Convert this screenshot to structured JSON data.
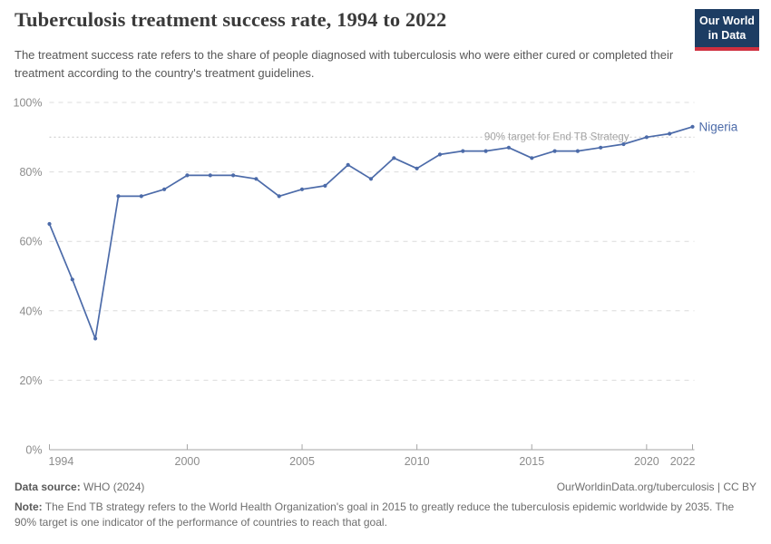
{
  "colors": {
    "line": "#4c6ba9",
    "logo_bg": "#1d3d63",
    "logo_accent": "#cf2f3f",
    "grid": "#dcdcdc",
    "axis": "#a6a6a6",
    "tick_label": "#8c8c8c",
    "target_line": "#c6c6c6",
    "target_label": "#a5a5a5"
  },
  "header": {
    "title": "Tuberculosis treatment success rate, 1994 to 2022",
    "subtitle": "The treatment success rate refers to the share of people diagnosed with tuberculosis who were either cured or completed their treatment according to the country's treatment guidelines.",
    "logo": {
      "line1": "Our World",
      "line2": "in Data"
    }
  },
  "chart_data": {
    "type": "line",
    "title": "Tuberculosis treatment success rate, 1994 to 2022",
    "x": [
      1994,
      1995,
      1996,
      1997,
      1998,
      1999,
      2000,
      2001,
      2002,
      2003,
      2004,
      2005,
      2006,
      2007,
      2008,
      2009,
      2010,
      2011,
      2012,
      2013,
      2014,
      2015,
      2016,
      2017,
      2018,
      2019,
      2020,
      2021,
      2022
    ],
    "series": [
      {
        "name": "Nigeria",
        "values": [
          65,
          49,
          32,
          73,
          73,
          75,
          79,
          79,
          79,
          78,
          73,
          75,
          76,
          82,
          78,
          84,
          81,
          85,
          86,
          86,
          87,
          84,
          86,
          86,
          87,
          88,
          90,
          91,
          93
        ]
      }
    ],
    "ylim": [
      0,
      100
    ],
    "yticks": [
      0,
      20,
      40,
      60,
      80,
      100
    ],
    "ytick_suffix": "%",
    "xticks": [
      1994,
      2000,
      2005,
      2010,
      2015,
      2020,
      2022
    ],
    "grid": true,
    "legend_position": "end-of-line",
    "target_line": {
      "value": 90,
      "label": "90% target for End TB Strategy"
    }
  },
  "footer": {
    "data_source_label": "Data source:",
    "data_source_value": "WHO (2024)",
    "attribution": "OurWorldinData.org/tuberculosis | CC BY",
    "note_label": "Note:",
    "note_text": "The End TB strategy refers to the World Health Organization's goal in 2015 to greatly reduce the tuberculosis epidemic worldwide by 2035. The 90% target is one indicator of the performance of countries to reach that goal."
  }
}
